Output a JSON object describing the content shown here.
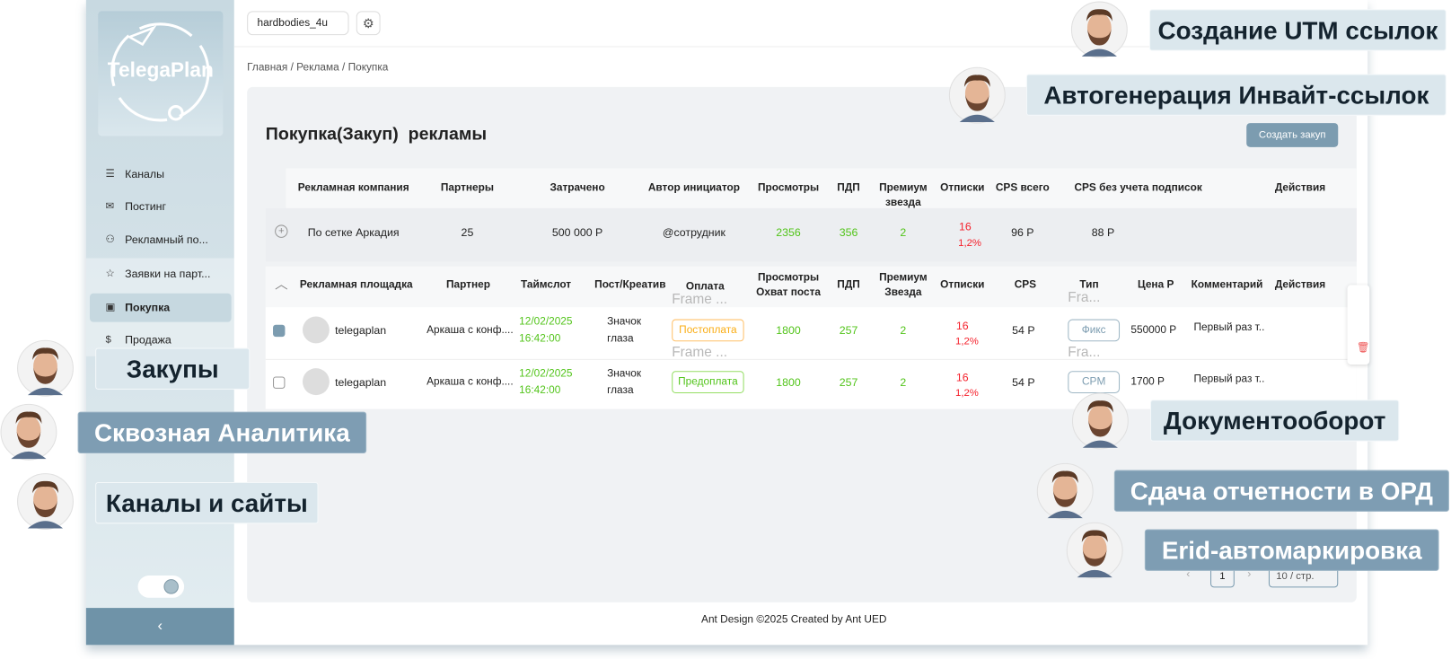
{
  "header": {
    "account": "hardbodies_4u"
  },
  "breadcrumb": "Главная / Реклама / Покупка",
  "sidebar": {
    "logo": "TelegaPlan",
    "menu": [
      "Каналы",
      "Постинг",
      "Рекламный по...",
      "Заявки на парт...",
      "Покупка",
      "Продажа"
    ]
  },
  "page": {
    "title": "Покупка(Закуп)  рекламы",
    "create_button": "Создать закуп"
  },
  "campaigns": {
    "columns": [
      "Рекламная компания",
      "Партнеры",
      "Затрачено",
      "Автор инициатор",
      "Просмотры",
      "ПДП",
      "Премиум звезда",
      "Отписки",
      "CPS  всего",
      "CPS  без учета подписок",
      "Действия"
    ],
    "rows": [
      {
        "name": "По сетке Аркадия",
        "partners": "25",
        "spent": "500 000 Р",
        "author": "@сотрудник",
        "views": "2356",
        "pdp": "356",
        "premium": "2",
        "unsub": "16",
        "unsub_pct": "1,2%",
        "cps_total": "96 Р",
        "cps_net": "88 Р"
      }
    ]
  },
  "placements": {
    "columns": [
      "Рекламная площадка",
      "Партнер",
      "Таймслот",
      "Пост/Креатив",
      "Оплата",
      "Просмотры Охват поста",
      "ПДП",
      "Премиум Звезда",
      "Отписки",
      "CPS",
      "Тип",
      "Цена Р",
      "Комментарий",
      "Действия"
    ],
    "rows": [
      {
        "checked": true,
        "name": "telegaplan",
        "partner": "Аркаша с конф....",
        "date": "12/02/2025",
        "time": "16:42:00",
        "creative": "Значок глаза",
        "payment": "Постоплата",
        "views": "1800",
        "pdp": "257",
        "premium": "2",
        "unsub": "16",
        "unsub_pct": "1,2%",
        "cps": "54 Р",
        "type": "Фикс",
        "price": "550000 Р",
        "comment": "Первый раз т.."
      },
      {
        "checked": false,
        "name": "telegaplan",
        "partner": "Аркаша с конф....",
        "date": "12/02/2025",
        "time": "16:42:00",
        "creative": "Значок глаза",
        "payment": "Предоплата",
        "views": "1800",
        "pdp": "257",
        "premium": "2",
        "unsub": "16",
        "unsub_pct": "1,2%",
        "cps": "54 Р",
        "type": "CPM",
        "price": "1700 Р",
        "comment": "Первый раз т.."
      }
    ]
  },
  "ghosts": [
    "Frame ...",
    "Fra...",
    "Frame ...",
    "Fra..."
  ],
  "pagination": {
    "page": "1",
    "page_size": "10 / стр."
  },
  "footer": "Ant Design ©2025 Created by Ant UED",
  "features": [
    "Создание UTM ссылок",
    "Автогенерация Инвайт-ссылок",
    "Закупы",
    "Сквозная Аналитика",
    "Каналы и сайты",
    "Документооборот",
    "Сдача отчетности в ОРД",
    "Erid-автомаркировка"
  ]
}
